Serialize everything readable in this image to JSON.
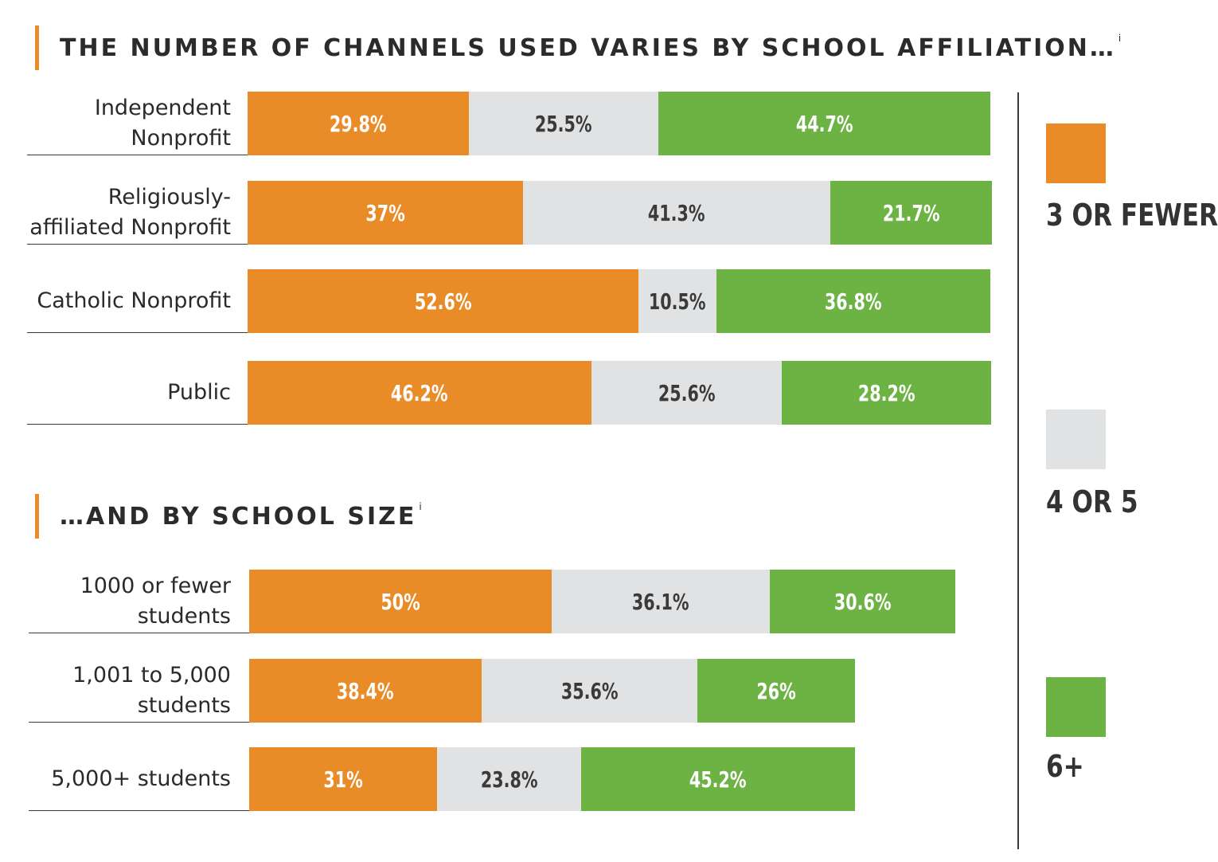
{
  "chart_data": [
    {
      "type": "bar",
      "stacked": true,
      "orientation": "horizontal",
      "title": "THE NUMBER OF CHANNELS USED VARIES BY SCHOOL AFFILIATION…",
      "title_sup": "i",
      "categories": [
        "Independent Nonprofit",
        "Religiously-affiliated Nonprofit",
        "Catholic Nonprofit",
        "Public"
      ],
      "series": [
        {
          "name": "3 OR FEWER",
          "values": [
            29.8,
            37,
            52.6,
            46.2
          ],
          "labels": [
            "29.8%",
            "37%",
            "52.6%",
            "46.2%"
          ]
        },
        {
          "name": "4 OR 5",
          "values": [
            25.5,
            41.3,
            10.5,
            25.6
          ],
          "labels": [
            "25.5%",
            "41.3%",
            "10.5%",
            "25.6%"
          ]
        },
        {
          "name": "6+",
          "values": [
            44.7,
            21.7,
            36.8,
            28.2
          ],
          "labels": [
            "44.7%",
            "21.7%",
            "36.8%",
            "28.2%"
          ]
        }
      ]
    },
    {
      "type": "bar",
      "stacked": true,
      "orientation": "horizontal",
      "title": "…AND BY SCHOOL SIZE",
      "title_sup": "i",
      "categories": [
        "1000 or fewer students",
        "1,001 to 5,000 students",
        "5,000+ students"
      ],
      "series": [
        {
          "name": "3 OR FEWER",
          "values": [
            50,
            38.4,
            31
          ],
          "labels": [
            "50%",
            "38.4%",
            "31%"
          ]
        },
        {
          "name": "4 OR 5",
          "values": [
            36.1,
            35.6,
            23.8
          ],
          "labels": [
            "36.1%",
            "35.6%",
            "23.8%"
          ]
        },
        {
          "name": "6+",
          "values": [
            30.6,
            26,
            45.2
          ],
          "labels": [
            "30.6%",
            "26%",
            "45.2%"
          ]
        }
      ]
    }
  ],
  "legend": [
    {
      "label": "3 OR FEWER",
      "color": "#e98b27"
    },
    {
      "label": "4 OR 5",
      "color": "#e1e2e3"
    },
    {
      "label": "6+",
      "color": "#6cb344"
    }
  ],
  "colors": {
    "orange": "#e98b27",
    "gray": "#e1e2e3",
    "green": "#6cb344",
    "accent_bar": "#e98b27"
  }
}
